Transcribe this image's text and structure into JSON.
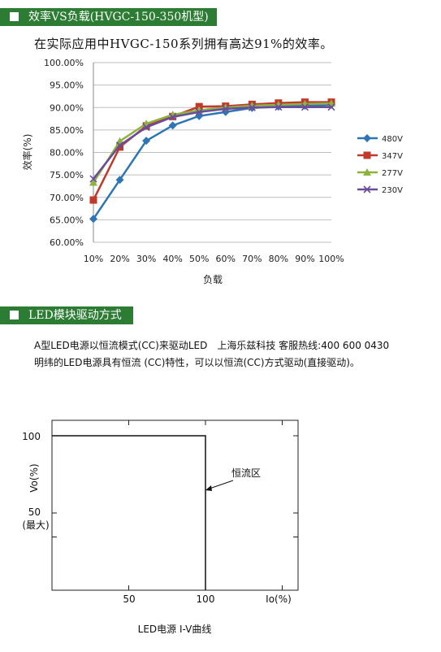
{
  "section1": {
    "title": "效率VS负载(HVGC-150-350机型)"
  },
  "intro_text": "在实际应用中HVGC-150系列拥有高达91%的效率。",
  "efficiency_chart": {
    "type": "line",
    "ylabel": "效率(%)",
    "xlabel": "负载",
    "ylim": [
      60,
      100
    ],
    "y_tick_labels": [
      "100.00%",
      "95.00%",
      "90.00%",
      "85.00%",
      "80.00%",
      "75.00%",
      "70.00%",
      "65.00%",
      "60.00%"
    ],
    "categories": [
      "10%",
      "20%",
      "30%",
      "40%",
      "50%",
      "60%",
      "70%",
      "80%",
      "90%",
      "100%"
    ],
    "grid": "horizontal",
    "legend_position": "right",
    "series": [
      {
        "name": "480V",
        "color": "#2e75b6",
        "marker": "diamond",
        "values": [
          65.2,
          73.9,
          82.6,
          86.0,
          88.1,
          89.0,
          89.9,
          90.2,
          90.4,
          90.6
        ]
      },
      {
        "name": "347V",
        "color": "#c0392b",
        "marker": "square",
        "values": [
          69.4,
          81.2,
          85.9,
          88.0,
          90.2,
          90.3,
          90.7,
          91.0,
          91.2,
          91.2
        ]
      },
      {
        "name": "277V",
        "color": "#8db33e",
        "marker": "triangle",
        "values": [
          73.3,
          82.5,
          86.4,
          88.4,
          89.4,
          90.0,
          90.4,
          90.6,
          90.8,
          90.9
        ]
      },
      {
        "name": "230V",
        "color": "#6a4c9c",
        "marker": "x",
        "values": [
          74.1,
          81.6,
          85.6,
          87.9,
          89.0,
          89.7,
          90.0,
          90.1,
          90.1,
          90.1
        ]
      }
    ]
  },
  "section2": {
    "title": "LED模块驱动方式"
  },
  "paragraph": {
    "line1": "A型LED电源以恒流模式(CC)来驱动LED",
    "contact": "上海乐兹科技 客服热线:400 600 0430",
    "line2": "明纬的LED电源具有恒流 (CC)特性，可以以恒流(CC)方式驱动(直接驱动)。"
  },
  "iv_chart": {
    "type": "line",
    "ylabel": "Vo(%)",
    "xlabel": "Io(%)",
    "y_tick_labels": {
      "max": "100",
      "mid": "50",
      "mid_sub": "(最大)"
    },
    "x_tick_labels": [
      "50",
      "100"
    ],
    "annotation": "恒流区",
    "caption": "LED电源 I-V曲线",
    "curve": {
      "x": [
        0,
        100,
        100
      ],
      "y": [
        100,
        100,
        0
      ]
    }
  }
}
